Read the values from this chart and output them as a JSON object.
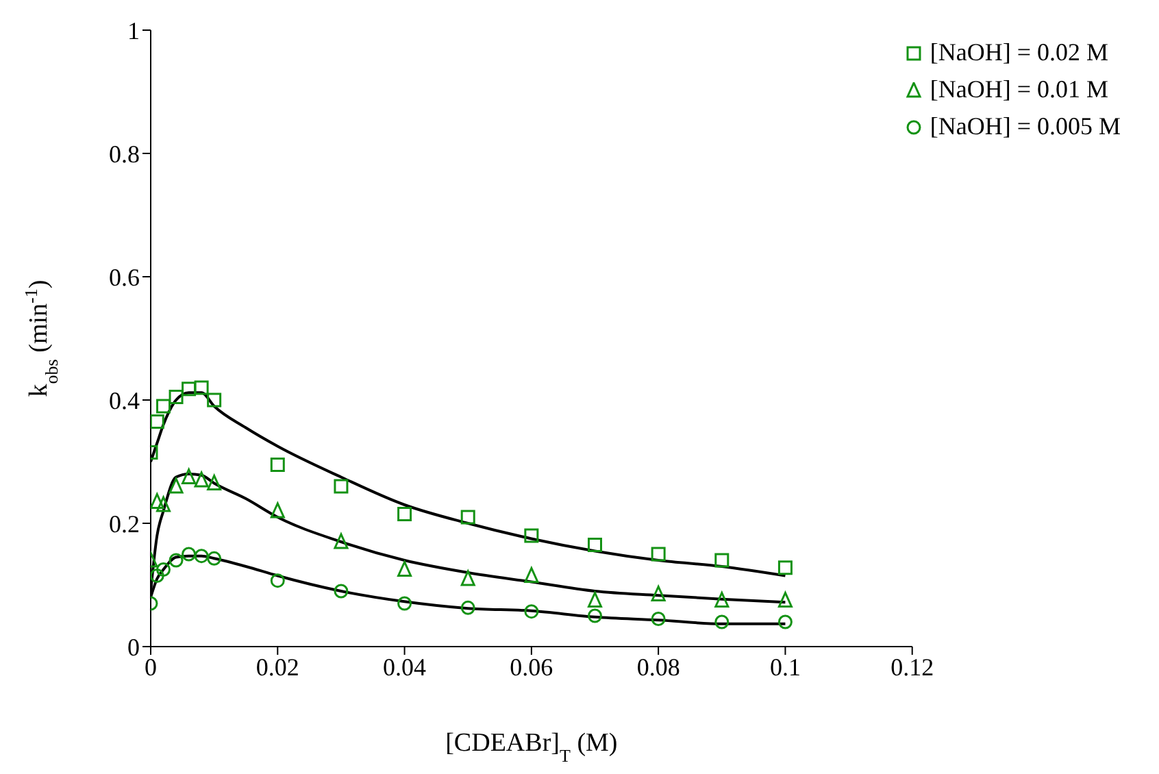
{
  "chart_data": {
    "type": "scatter",
    "xlabel": "[CDEABr]$_{T}$ (M)",
    "ylabel": "k$_{obs}$ (min$^{-1}$)",
    "x": [
      0,
      0.001,
      0.002,
      0.004,
      0.006,
      0.008,
      0.01,
      0.02,
      0.03,
      0.04,
      0.05,
      0.06,
      0.07,
      0.08,
      0.09,
      0.1
    ],
    "series": [
      {
        "name": "[NaOH] = 0.02 M",
        "color": "#149214",
        "marker": "square",
        "values": [
          0.315,
          0.365,
          0.39,
          0.405,
          0.418,
          0.42,
          0.4,
          0.295,
          0.26,
          0.215,
          0.21,
          0.18,
          0.165,
          0.15,
          0.14,
          0.128
        ]
      },
      {
        "name": "[NaOH] = 0.01 M",
        "color": "#149214",
        "marker": "triangle",
        "values": [
          0.14,
          0.235,
          0.23,
          0.26,
          0.275,
          0.27,
          0.265,
          0.22,
          0.17,
          0.125,
          0.11,
          0.115,
          0.075,
          0.085,
          0.075,
          0.075
        ]
      },
      {
        "name": "[NaOH] = 0.005 M",
        "color": "#149214",
        "marker": "circle",
        "values": [
          0.07,
          0.115,
          0.125,
          0.14,
          0.15,
          0.147,
          0.143,
          0.107,
          0.09,
          0.07,
          0.063,
          0.057,
          0.05,
          0.045,
          0.04,
          0.04
        ]
      },
      {
        "type": "line",
        "color": "#000000",
        "marker": "none",
        "x": [
          0,
          0.001,
          0.002,
          0.004,
          0.006,
          0.008,
          0.01,
          0.015,
          0.02,
          0.03,
          0.04,
          0.05,
          0.06,
          0.07,
          0.08,
          0.09,
          0.1
        ],
        "values": [
          0.3,
          0.33,
          0.36,
          0.4,
          0.412,
          0.412,
          0.39,
          0.355,
          0.325,
          0.275,
          0.23,
          0.2,
          0.175,
          0.155,
          0.14,
          0.13,
          0.115
        ]
      },
      {
        "type": "line",
        "color": "#000000",
        "marker": "none",
        "x": [
          0,
          0.001,
          0.002,
          0.004,
          0.006,
          0.008,
          0.01,
          0.015,
          0.02,
          0.03,
          0.04,
          0.05,
          0.06,
          0.07,
          0.08,
          0.09,
          0.1
        ],
        "values": [
          0.09,
          0.18,
          0.22,
          0.275,
          0.28,
          0.278,
          0.265,
          0.24,
          0.21,
          0.17,
          0.14,
          0.12,
          0.105,
          0.09,
          0.083,
          0.077,
          0.072
        ]
      },
      {
        "type": "line",
        "color": "#000000",
        "marker": "none",
        "x": [
          0,
          0.001,
          0.002,
          0.004,
          0.006,
          0.008,
          0.01,
          0.015,
          0.02,
          0.03,
          0.04,
          0.05,
          0.06,
          0.07,
          0.08,
          0.09,
          0.1
        ],
        "values": [
          0.08,
          0.11,
          0.125,
          0.145,
          0.147,
          0.147,
          0.143,
          0.13,
          0.115,
          0.09,
          0.073,
          0.062,
          0.058,
          0.048,
          0.043,
          0.037,
          0.037
        ]
      }
    ],
    "xlim": [
      0,
      0.12
    ],
    "xticks": [
      0,
      0.02,
      0.04,
      0.06,
      0.08,
      0.1,
      0.12
    ],
    "ylim": [
      0,
      1
    ],
    "yticks": [
      0,
      0.2,
      0.4,
      0.6,
      0.8,
      1
    ],
    "grid": false,
    "legend": "top right"
  }
}
